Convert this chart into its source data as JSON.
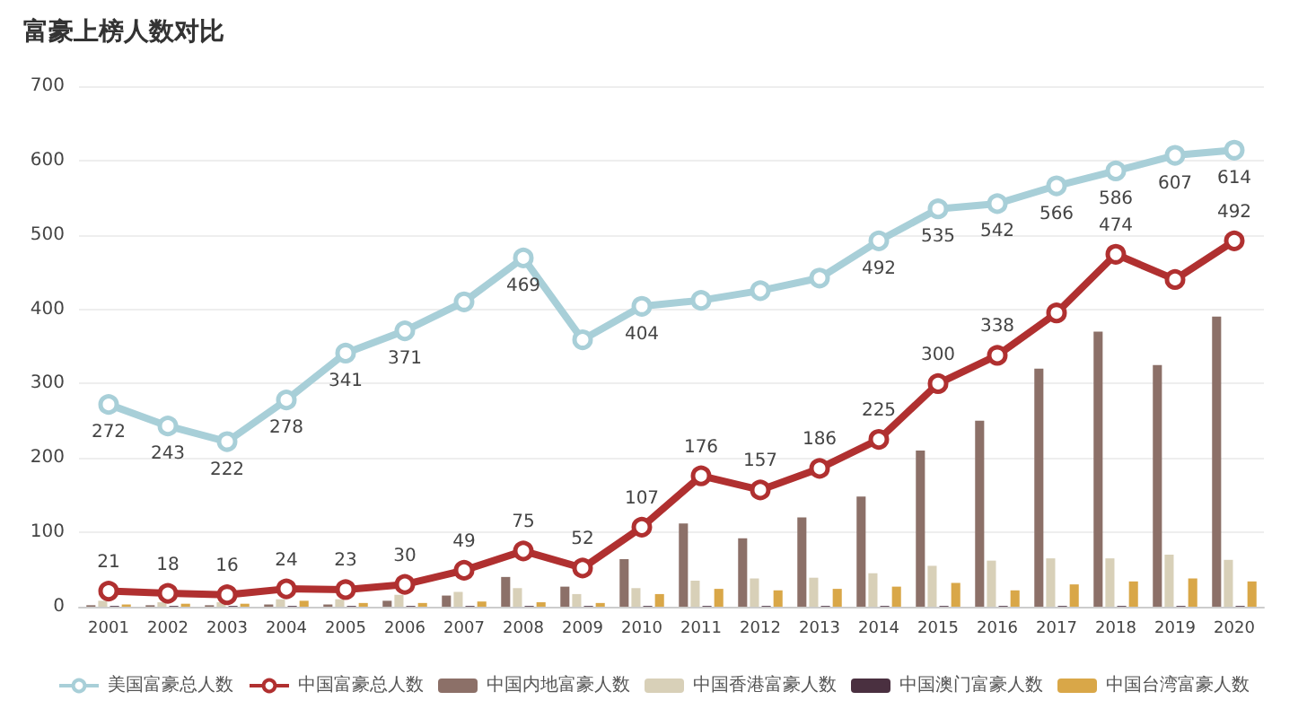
{
  "chart_data": {
    "type": "bar",
    "title": "富豪上榜人数对比",
    "categories": [
      "2001",
      "2002",
      "2003",
      "2004",
      "2005",
      "2006",
      "2007",
      "2008",
      "2009",
      "2010",
      "2011",
      "2012",
      "2013",
      "2014",
      "2015",
      "2016",
      "2017",
      "2018",
      "2019",
      "2020"
    ],
    "series": [
      {
        "name": "美国富豪总人数",
        "type": "line",
        "color": "#a8cfd8",
        "values": [
          272,
          243,
          222,
          278,
          341,
          371,
          410,
          469,
          359,
          404,
          412,
          425,
          442,
          492,
          535,
          542,
          566,
          586,
          607,
          614
        ],
        "value_labels": [
          "272",
          "243",
          "222",
          "278",
          "341",
          "371",
          null,
          "469",
          null,
          "404",
          null,
          null,
          null,
          "492",
          "535",
          "542",
          "566",
          "586",
          "607",
          "614"
        ]
      },
      {
        "name": "中国富豪总人数",
        "type": "line",
        "color": "#b03030",
        "values": [
          21,
          18,
          16,
          24,
          23,
          30,
          49,
          75,
          52,
          107,
          176,
          157,
          186,
          225,
          300,
          338,
          395,
          474,
          440,
          492
        ],
        "value_labels": [
          "21",
          "18",
          "16",
          "24",
          "23",
          "30",
          "49",
          "75",
          "52",
          "107",
          "176",
          "157",
          "186",
          "225",
          "300",
          "338",
          null,
          "474",
          null,
          "492"
        ]
      },
      {
        "name": "中国内地富豪人数",
        "color": "#8c7068",
        "values": [
          2,
          2,
          2,
          3,
          3,
          8,
          15,
          40,
          27,
          64,
          112,
          92,
          120,
          148,
          210,
          250,
          320,
          370,
          325,
          390
        ]
      },
      {
        "name": "中国香港富豪人数",
        "color": "#d8d0b8",
        "values": [
          8,
          6,
          6,
          10,
          10,
          16,
          20,
          25,
          17,
          25,
          35,
          38,
          39,
          45,
          55,
          62,
          65,
          65,
          70,
          63
        ]
      },
      {
        "name": "中国澳门富豪人数",
        "color": "#4a3040",
        "values": [
          1,
          1,
          1,
          1,
          1,
          1,
          1,
          1,
          1,
          1,
          1,
          1,
          1,
          1,
          1,
          1,
          1,
          1,
          1,
          1
        ]
      },
      {
        "name": "中国台湾富豪人数",
        "color": "#d9a748",
        "values": [
          3,
          4,
          4,
          8,
          5,
          5,
          7,
          6,
          5,
          17,
          24,
          22,
          24,
          27,
          32,
          22,
          30,
          34,
          38,
          34
        ]
      }
    ],
    "ylim": [
      0,
      700
    ],
    "yticks": [
      0,
      100,
      200,
      300,
      400,
      500,
      600,
      700
    ],
    "grid": "y",
    "legend": "bottom",
    "marker": "circle"
  }
}
